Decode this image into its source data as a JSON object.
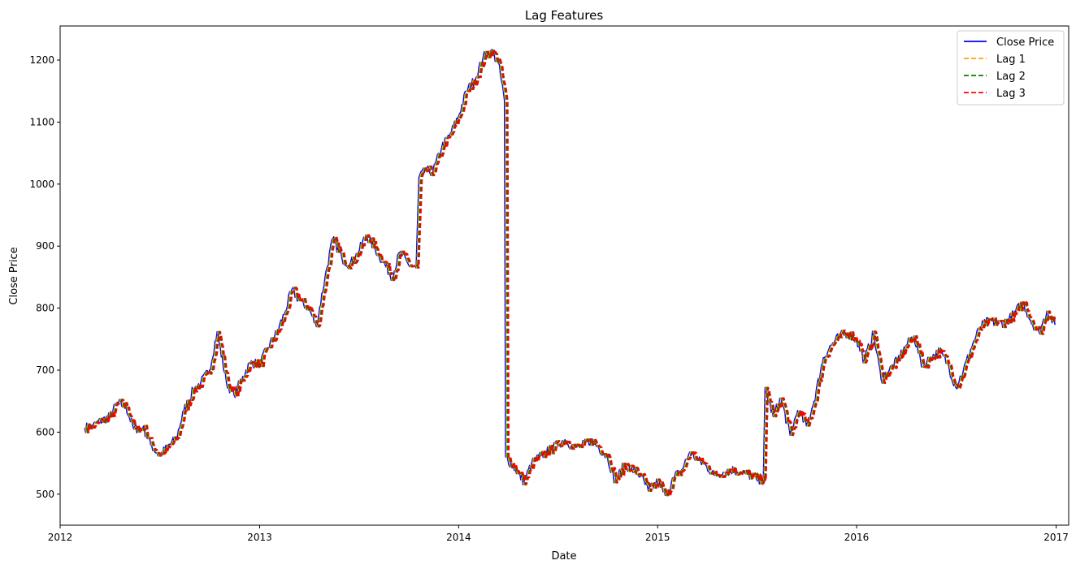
{
  "chart_data": {
    "type": "line",
    "title": "Lag Features",
    "xlabel": "Date",
    "ylabel": "Close Price",
    "xlim": [
      "2012-01-01",
      "2017-01-24"
    ],
    "ylim": [
      450,
      1255
    ],
    "x_ticks": [
      "2012",
      "2013",
      "2014",
      "2015",
      "2016",
      "2017"
    ],
    "y_ticks": [
      500,
      600,
      700,
      800,
      900,
      1000,
      1100,
      1200
    ],
    "grid": false,
    "legend_position": "top-right",
    "series": [
      {
        "name": "Close Price",
        "color": "#0000ff",
        "style": "solid"
      },
      {
        "name": "Lag 1",
        "color": "#ffa500",
        "style": "dashed"
      },
      {
        "name": "Lag 2",
        "color": "#008000",
        "style": "dashed"
      },
      {
        "name": "Lag 3",
        "color": "#ff0000",
        "style": "dashed"
      }
    ],
    "close_price": [
      [
        "2012-02-15",
        607
      ],
      [
        "2012-03-01",
        610
      ],
      [
        "2012-03-15",
        618
      ],
      [
        "2012-04-01",
        625
      ],
      [
        "2012-04-15",
        648
      ],
      [
        "2012-05-01",
        640
      ],
      [
        "2012-05-15",
        605
      ],
      [
        "2012-06-01",
        608
      ],
      [
        "2012-06-15",
        580
      ],
      [
        "2012-07-01",
        562
      ],
      [
        "2012-07-15",
        575
      ],
      [
        "2012-08-01",
        590
      ],
      [
        "2012-08-15",
        635
      ],
      [
        "2012-09-01",
        668
      ],
      [
        "2012-09-15",
        680
      ],
      [
        "2012-10-01",
        700
      ],
      [
        "2012-10-15",
        762
      ],
      [
        "2012-11-01",
        680
      ],
      [
        "2012-11-15",
        660
      ],
      [
        "2012-12-01",
        690
      ],
      [
        "2012-12-15",
        712
      ],
      [
        "2013-01-01",
        710
      ],
      [
        "2013-01-15",
        735
      ],
      [
        "2013-02-01",
        760
      ],
      [
        "2013-02-15",
        790
      ],
      [
        "2013-03-01",
        830
      ],
      [
        "2013-03-15",
        812
      ],
      [
        "2013-04-01",
        800
      ],
      [
        "2013-04-15",
        770
      ],
      [
        "2013-05-01",
        850
      ],
      [
        "2013-05-15",
        912
      ],
      [
        "2013-06-01",
        880
      ],
      [
        "2013-06-15",
        870
      ],
      [
        "2013-07-01",
        890
      ],
      [
        "2013-07-15",
        918
      ],
      [
        "2013-08-01",
        895
      ],
      [
        "2013-08-15",
        875
      ],
      [
        "2013-09-01",
        850
      ],
      [
        "2013-09-15",
        890
      ],
      [
        "2013-10-01",
        870
      ],
      [
        "2013-10-15",
        865
      ],
      [
        "2013-10-20",
        1010
      ],
      [
        "2013-11-01",
        1022
      ],
      [
        "2013-11-15",
        1020
      ],
      [
        "2013-12-01",
        1060
      ],
      [
        "2013-12-15",
        1078
      ],
      [
        "2014-01-01",
        1110
      ],
      [
        "2014-01-15",
        1150
      ],
      [
        "2014-02-01",
        1170
      ],
      [
        "2014-02-15",
        1205
      ],
      [
        "2014-03-01",
        1215
      ],
      [
        "2014-03-15",
        1195
      ],
      [
        "2014-03-26",
        1135
      ],
      [
        "2014-03-28",
        560
      ],
      [
        "2014-04-15",
        540
      ],
      [
        "2014-05-01",
        520
      ],
      [
        "2014-05-15",
        550
      ],
      [
        "2014-06-01",
        562
      ],
      [
        "2014-06-15",
        570
      ],
      [
        "2014-07-01",
        580
      ],
      [
        "2014-07-15",
        588
      ],
      [
        "2014-08-01",
        575
      ],
      [
        "2014-08-15",
        578
      ],
      [
        "2014-09-01",
        587
      ],
      [
        "2014-09-15",
        575
      ],
      [
        "2014-10-01",
        560
      ],
      [
        "2014-10-15",
        520
      ],
      [
        "2014-11-01",
        548
      ],
      [
        "2014-11-15",
        540
      ],
      [
        "2014-12-01",
        530
      ],
      [
        "2014-12-15",
        505
      ],
      [
        "2015-01-01",
        520
      ],
      [
        "2015-01-15",
        498
      ],
      [
        "2015-02-01",
        528
      ],
      [
        "2015-02-15",
        540
      ],
      [
        "2015-03-01",
        568
      ],
      [
        "2015-03-15",
        555
      ],
      [
        "2015-04-01",
        545
      ],
      [
        "2015-04-15",
        530
      ],
      [
        "2015-05-01",
        535
      ],
      [
        "2015-05-15",
        540
      ],
      [
        "2015-06-01",
        535
      ],
      [
        "2015-06-15",
        532
      ],
      [
        "2015-07-01",
        525
      ],
      [
        "2015-07-14",
        522
      ],
      [
        "2015-07-17",
        672
      ],
      [
        "2015-08-01",
        625
      ],
      [
        "2015-08-15",
        655
      ],
      [
        "2015-09-01",
        595
      ],
      [
        "2015-09-15",
        635
      ],
      [
        "2015-10-01",
        610
      ],
      [
        "2015-10-15",
        650
      ],
      [
        "2015-11-01",
        720
      ],
      [
        "2015-11-15",
        740
      ],
      [
        "2015-12-01",
        755
      ],
      [
        "2015-12-15",
        760
      ],
      [
        "2016-01-01",
        748
      ],
      [
        "2016-01-15",
        715
      ],
      [
        "2016-02-01",
        760
      ],
      [
        "2016-02-15",
        685
      ],
      [
        "2016-03-01",
        700
      ],
      [
        "2016-03-15",
        715
      ],
      [
        "2016-04-01",
        740
      ],
      [
        "2016-04-15",
        755
      ],
      [
        "2016-05-01",
        705
      ],
      [
        "2016-05-15",
        720
      ],
      [
        "2016-06-01",
        730
      ],
      [
        "2016-06-15",
        712
      ],
      [
        "2016-07-01",
        672
      ],
      [
        "2016-07-15",
        700
      ],
      [
        "2016-08-01",
        742
      ],
      [
        "2016-08-15",
        770
      ],
      [
        "2016-09-01",
        780
      ],
      [
        "2016-09-15",
        775
      ],
      [
        "2016-10-01",
        778
      ],
      [
        "2016-10-15",
        790
      ],
      [
        "2016-11-01",
        810
      ],
      [
        "2016-11-15",
        780
      ],
      [
        "2016-12-01",
        760
      ],
      [
        "2016-12-15",
        795
      ],
      [
        "2016-12-30",
        773
      ]
    ]
  }
}
